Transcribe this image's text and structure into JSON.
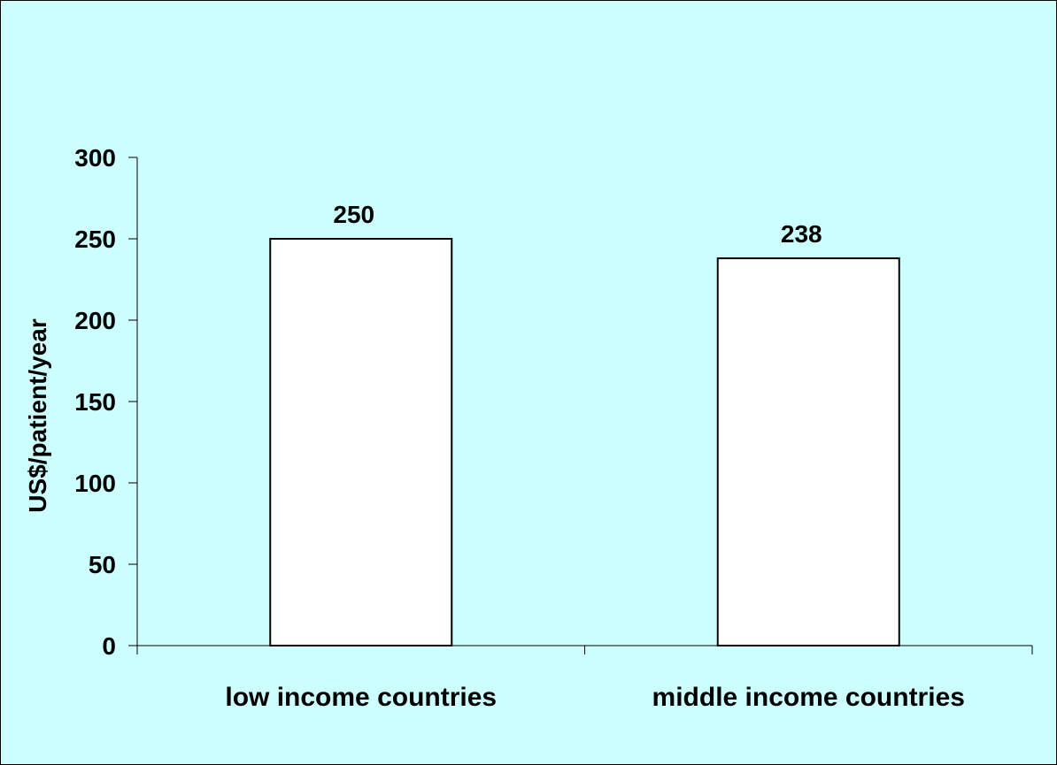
{
  "chart_data": {
    "type": "bar",
    "categories": [
      "low income countries",
      "middle income countries"
    ],
    "values": [
      250,
      238
    ],
    "data_labels": [
      "250",
      "238"
    ],
    "title": "",
    "xlabel": "",
    "ylabel": "US$/patient/year",
    "ylim": [
      0,
      300
    ],
    "yticks": [
      0,
      50,
      100,
      150,
      200,
      250,
      300
    ],
    "grid": false,
    "legend": "none",
    "colors": {
      "plot_background": "#ccffff",
      "bar_fill": "#ffffff",
      "bar_stroke": "#000000",
      "axis": "#000000"
    }
  }
}
